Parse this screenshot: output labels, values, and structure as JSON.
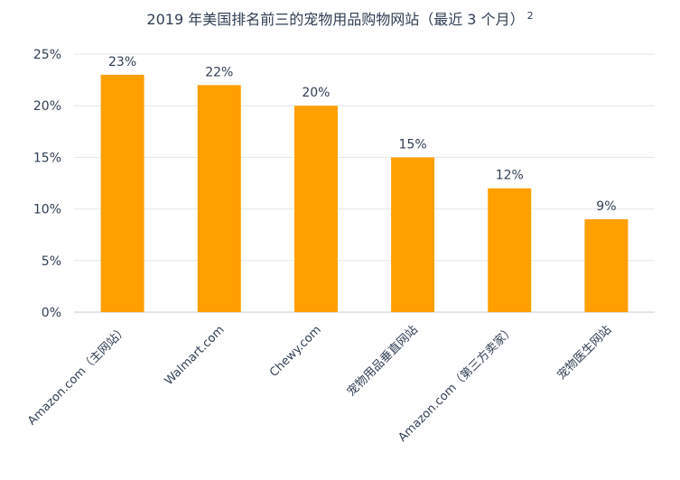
{
  "chart_data": {
    "type": "bar",
    "title": "2019 年美国排名前三的宠物用品购物网站（最近 3 个月）",
    "title_superscript": "2",
    "categories": [
      "Amazon.com（主网站）",
      "Walmart.com",
      "Chewy.com",
      "宠物用品垂直网站",
      "Amazon.com（第三方卖家）",
      "宠物医生网站"
    ],
    "values": [
      23,
      22,
      20,
      15,
      12,
      9
    ],
    "data_labels": [
      "23%",
      "22%",
      "20%",
      "15%",
      "12%",
      "9%"
    ],
    "y_ticks": [
      0,
      5,
      10,
      15,
      20,
      25
    ],
    "y_tick_labels": [
      "0%",
      "5%",
      "10%",
      "15%",
      "20%",
      "25%"
    ],
    "ylim": [
      0,
      25
    ],
    "xlabel": "",
    "ylabel": "",
    "grid": true,
    "legend": "none",
    "bar_color": "#FF9F00",
    "grid_color": "#e3e6ea",
    "text_color": "#2f3e52"
  }
}
